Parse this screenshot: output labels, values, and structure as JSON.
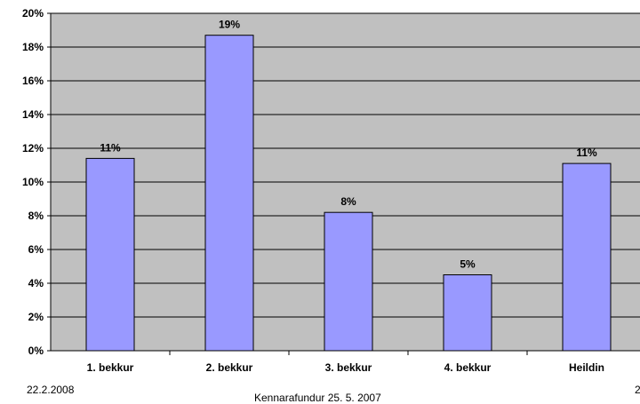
{
  "chart_data": {
    "type": "bar",
    "categories": [
      "1. bekkur",
      "2. bekkur",
      "3. bekkur",
      "4. bekkur",
      "Heildin"
    ],
    "values": [
      11.4,
      18.7,
      8.2,
      4.5,
      11.1
    ],
    "data_labels": [
      "11%",
      "19%",
      "8%",
      "5%",
      "11%"
    ],
    "y_ticks": [
      "0%",
      "2%",
      "4%",
      "6%",
      "8%",
      "10%",
      "12%",
      "14%",
      "16%",
      "18%",
      "20%"
    ],
    "ylim": [
      0,
      20
    ],
    "y_unit": "%",
    "grid": true,
    "colors": {
      "bar_fill": "#9999ff",
      "bar_stroke": "#000000",
      "plot_background": "#c0c0c0",
      "gridline": "#000000"
    }
  },
  "footer": {
    "date": "22.2.2008",
    "center": "Kennarafundur 25. 5. 2007",
    "page": "2"
  }
}
